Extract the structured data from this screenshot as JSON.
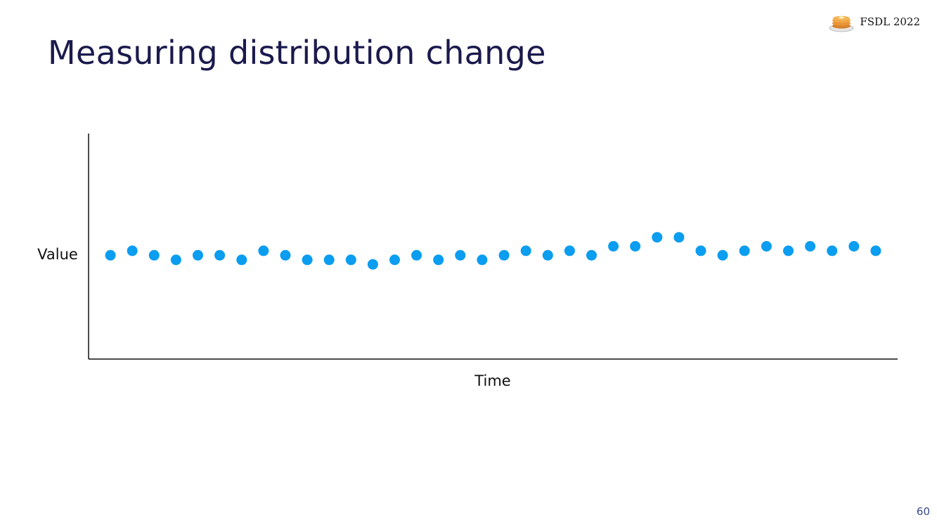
{
  "slide": {
    "title": "Measuring distribution change",
    "page_number": "60"
  },
  "brand": {
    "text": "FSDL 2022",
    "icon": "pancake-stack-icon"
  },
  "colors": {
    "title": "#1b1a4d",
    "points": "#0a9df0",
    "axis": "#111111",
    "page_number": "#3a4a8a"
  },
  "chart_data": {
    "type": "scatter",
    "title": "",
    "xlabel": "Time",
    "ylabel": "Value",
    "grid": false,
    "legend": "none",
    "xlim": [
      0,
      37
    ],
    "ylim": [
      0,
      10
    ],
    "series": [
      {
        "x": [
          1,
          2,
          3,
          4,
          5,
          6,
          7,
          8,
          9,
          10,
          11,
          12,
          13,
          14,
          15,
          16,
          17,
          18,
          19,
          20,
          21,
          22,
          23,
          24,
          25,
          26,
          27,
          28,
          29,
          30,
          31,
          32,
          33,
          34,
          35,
          36
        ],
        "y": [
          4.6,
          4.8,
          4.6,
          4.4,
          4.6,
          4.6,
          4.4,
          4.8,
          4.6,
          4.4,
          4.4,
          4.4,
          4.2,
          4.4,
          4.6,
          4.4,
          4.6,
          4.4,
          4.6,
          4.8,
          4.6,
          4.8,
          4.6,
          5.0,
          5.0,
          5.4,
          5.4,
          4.8,
          4.6,
          4.8,
          5.0,
          4.8,
          5.0,
          4.8,
          5.0,
          4.8
        ]
      }
    ]
  }
}
